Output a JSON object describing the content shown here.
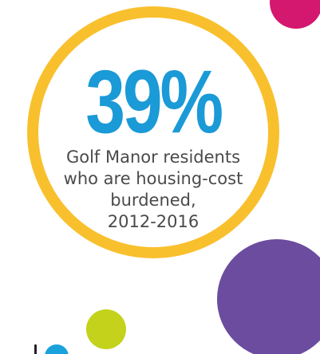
{
  "stat": {
    "value": "39%",
    "caption_lines": [
      "Golf Manor residents",
      "who are housing-cost",
      "burdened,",
      "2012-2016"
    ]
  },
  "colors": {
    "ring": "#f9c02e",
    "value": "#1a9ad6",
    "caption": "#4a4a4a",
    "magenta_dot": "#d4186f",
    "purple_dot": "#6b4c9e",
    "lime_dot": "#c4d21b",
    "blue_dot": "#1aa2dc",
    "dark_mark": "#222222"
  },
  "decorations": {
    "icons": [
      "magenta-circle",
      "purple-circle",
      "lime-circle",
      "blue-circle"
    ]
  }
}
